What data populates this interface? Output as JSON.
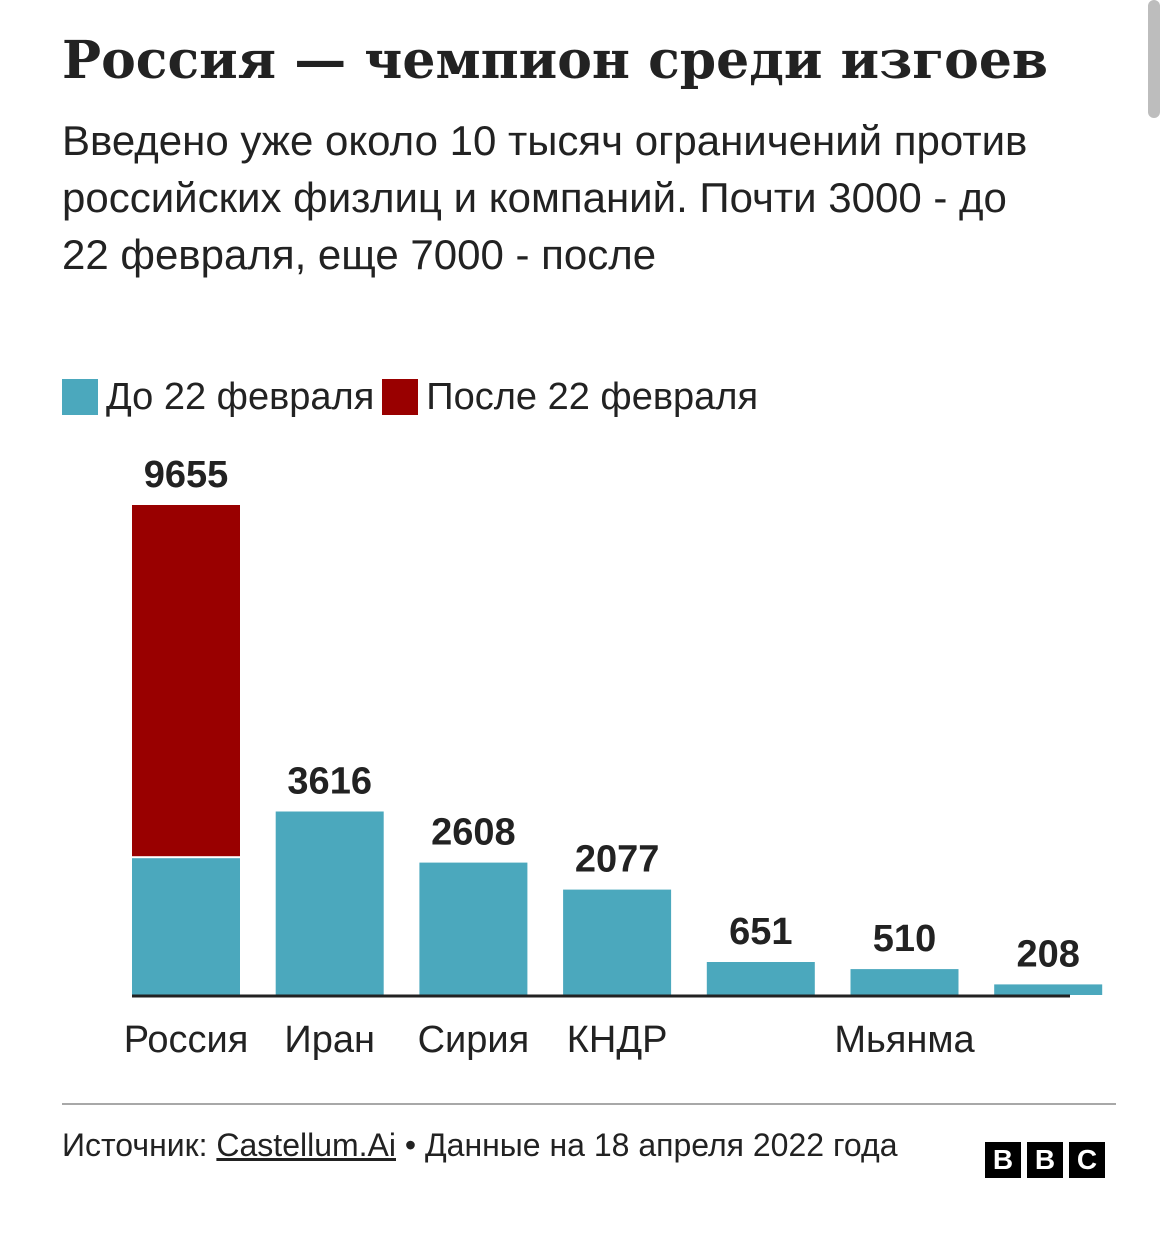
{
  "title": "Россия — чемпион среди изгоев",
  "subtitle": "Введено уже около 10 тысяч ограничений против российских физлиц и компаний. Почти 3000 - до 22 февраля, еще 7000 - после",
  "colors": {
    "before": "#4ba8bd",
    "after": "#990000",
    "axis": "#222222",
    "text": "#222222"
  },
  "chart_data": {
    "type": "bar",
    "stacked": true,
    "categories": [
      "Россия",
      "Иран",
      "Сирия",
      "КНДР",
      "",
      "Мьянма",
      ""
    ],
    "series": [
      {
        "name": "До 22 февраля",
        "values": [
          2695,
          3616,
          2608,
          2077,
          651,
          510,
          208
        ]
      },
      {
        "name": "После 22 февраля",
        "values": [
          6960,
          0,
          0,
          0,
          0,
          0,
          0
        ]
      }
    ],
    "totals": [
      "9655",
      "3616",
      "2608",
      "2077",
      "651",
      "510",
      "208"
    ],
    "legend_position": "top-left",
    "ylim": [
      0,
      10000
    ],
    "grid": false
  },
  "footer": {
    "source_prefix": "Источник: ",
    "source_link": "Castellum.Ai",
    "source_suffix": " • Данные на 18 апреля 2022 года"
  },
  "logo": {
    "letters": [
      "B",
      "B",
      "C"
    ]
  }
}
